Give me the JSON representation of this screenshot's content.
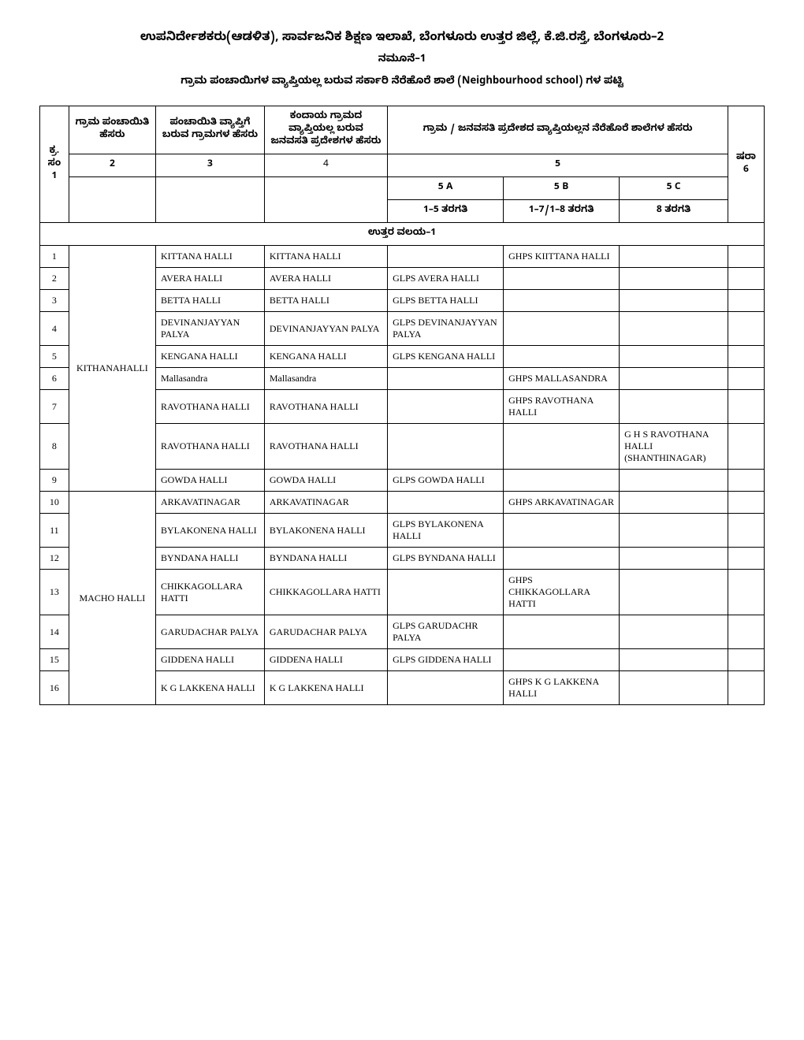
{
  "header": {
    "title": "ಉಪನಿರ್ದೇಶಕರು(ಆಡಳಿತ), ಸಾರ್ವಜನಿಕ ಶಿಕ್ಷಣ ಇಲಾಖೆ, ಬೆಂಗಳೂರು ಉತ್ತರ ಜಿಲ್ಲೆ, ಕೆ.ಜಿ.ರಸ್ತೆ, ಬೆಂಗಳೂರು–2",
    "subtitle": "ನಮೂನೆ–1",
    "table_title": "ಗ್ರಾಮ ಪಂಚಾಯಿಗಳ ವ್ಯಾಪ್ತಿಯಲ್ಲ ಬರುವ ಸರ್ಕಾರಿ ನೆರೆಹೊರೆ ಶಾಲೆ (Neighbourhood school) ಗಳ ಪಟ್ಟಿ",
    "title_fontsize": 15,
    "subtitle_fontsize": 13,
    "table_title_fontsize": 13
  },
  "columns": {
    "c1": "ಕ್ರ.ಸಂ",
    "c2": "ಗ್ರಾಮ ಪಂಚಾಯಿತಿ ಹೆಸರು",
    "c3": "ಪಂಚಾಯಿತಿ ವ್ಯಾಪ್ತಿಗೆ ಬರುವ ಗ್ರಾಮಗಳ ಹೆಸರು",
    "c4": "ಕಂದಾಯ ಗ್ರಾಮದ ವ್ಯಾಪ್ತಿಯಲ್ಲ ಬರುವ ಜನವಸತಿ ಪ್ರದೇಶಗಳ ಹೆಸರು",
    "c5": "ಗ್ರಾಮ / ಜನವಸತಿ ಪ್ರದೇಶದ ವ್ಯಾಪ್ತಿಯಲ್ಲನ ನೆರೆಹೊರೆ ಶಾಲೆಗಳ ಹೆಸರು",
    "c6": "ಷರಾ",
    "n2": "2",
    "n3": "3",
    "n4": "4",
    "n5": "5",
    "n1": "1",
    "n6": "6",
    "s5a": "5 A",
    "s5b": "5 B",
    "s5c": "5 C",
    "s5a2": "1–5 ತರಗತಿ",
    "s5b2": "1–7/1–8 ತರಗತಿ",
    "s5c2": "8 ತರಗತಿ"
  },
  "section": "ಉತ್ತರ ವಲಯ–1",
  "groups": [
    {
      "gp": "KITHANAHALLI",
      "rows": [
        {
          "sn": "1",
          "vil": "KITTANA HALLI",
          "rev": "KITTANA HALLI",
          "a": "",
          "b": "GHPS KIITTANA HALLI",
          "c": ""
        },
        {
          "sn": "2",
          "vil": "AVERA HALLI",
          "rev": "AVERA HALLI",
          "a": "GLPS AVERA HALLI",
          "b": "",
          "c": ""
        },
        {
          "sn": "3",
          "vil": "BETTA HALLI",
          "rev": "BETTA HALLI",
          "a": "GLPS BETTA HALLI",
          "b": "",
          "c": ""
        },
        {
          "sn": "4",
          "vil": "DEVINANJAYYAN PALYA",
          "rev": "DEVINANJAYYAN PALYA",
          "a": "GLPS DEVINANJAYYAN PALYA",
          "b": "",
          "c": ""
        },
        {
          "sn": "5",
          "vil": "KENGANA HALLI",
          "rev": "KENGANA HALLI",
          "a": "GLPS KENGANA HALLI",
          "b": "",
          "c": ""
        },
        {
          "sn": "6",
          "vil": "Mallasandra",
          "rev": "Mallasandra",
          "a": "",
          "b": "GHPS MALLASANDRA",
          "c": ""
        },
        {
          "sn": "7",
          "vil": "RAVOTHANA HALLI",
          "rev": "RAVOTHANA HALLI",
          "a": "",
          "b": "GHPS RAVOTHANA HALLI",
          "c": ""
        },
        {
          "sn": "8",
          "vil": "RAVOTHANA HALLI",
          "rev": "RAVOTHANA HALLI",
          "a": "",
          "b": "",
          "c": "G H S RAVOTHANA HALLI (SHANTHINAGAR)"
        },
        {
          "sn": "9",
          "vil": "GOWDA HALLI",
          "rev": "GOWDA HALLI",
          "a": "GLPS GOWDA HALLI",
          "b": "",
          "c": ""
        }
      ]
    },
    {
      "gp": "MACHO HALLI",
      "rows": [
        {
          "sn": "10",
          "vil": "ARKAVATINAGAR",
          "rev": "ARKAVATINAGAR",
          "a": "",
          "b": "GHPS ARKAVATINAGAR",
          "c": ""
        },
        {
          "sn": "11",
          "vil": "BYLAKONENA HALLI",
          "rev": "BYLAKONENA HALLI",
          "a": "GLPS BYLAKONENA HALLI",
          "b": "",
          "c": ""
        },
        {
          "sn": "12",
          "vil": "BYNDANA HALLI",
          "rev": "BYNDANA HALLI",
          "a": "GLPS BYNDANA HALLI",
          "b": "",
          "c": ""
        },
        {
          "sn": "13",
          "vil": "CHIKKAGOLLARA HATTI",
          "rev": "CHIKKAGOLLARA HATTI",
          "a": "",
          "b": "GHPS CHIKKAGOLLARA HATTI",
          "c": ""
        },
        {
          "sn": "14",
          "vil": "GARUDACHAR PALYA",
          "rev": "GARUDACHAR PALYA",
          "a": "GLPS GARUDACHR PALYA",
          "b": "",
          "c": ""
        },
        {
          "sn": "15",
          "vil": "GIDDENA HALLI",
          "rev": "GIDDENA HALLI",
          "a": "GLPS GIDDENA HALLI",
          "b": "",
          "c": ""
        },
        {
          "sn": "16",
          "vil": "K G LAKKENA HALLI",
          "rev": "K G LAKKENA HALLI",
          "a": "",
          "b": "GHPS K G LAKKENA HALLI",
          "c": ""
        }
      ]
    }
  ],
  "style": {
    "border_color": "#000000",
    "background_color": "#ffffff",
    "text_color": "#000000",
    "header_fontsize": 13,
    "cell_fontsize": 12
  }
}
